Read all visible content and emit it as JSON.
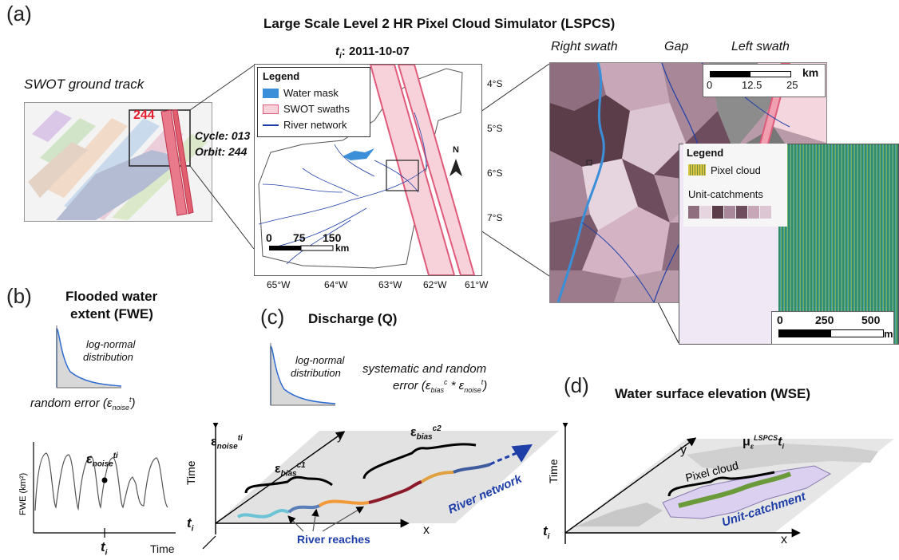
{
  "panel_a": {
    "letter": "(a)",
    "title": "Large Scale Level 2 HR Pixel Cloud Simulator (LSPCS)",
    "ground_track_label": "SWOT ground track",
    "track_number": "244",
    "cycle": "Cycle: 013",
    "orbit": "Orbit: 244",
    "map_time": "t",
    "map_time_sub": "i",
    "map_date": ": 2011-10-07",
    "legend_title": "Legend",
    "legend_items": [
      "Water mask",
      "SWOT swaths",
      "River network"
    ],
    "lat_ticks": [
      "4°S",
      "5°S",
      "6°S",
      "7°S"
    ],
    "lon_ticks": [
      "65°W",
      "64°W",
      "63°W",
      "62°W",
      "61°W"
    ],
    "scale1": {
      "labels": [
        "0",
        "75",
        "150"
      ],
      "unit": "km"
    },
    "north": "N",
    "right_swath": "Right swath",
    "gap": "Gap",
    "left_swath": "Left swath",
    "scale2": {
      "labels": [
        "0",
        "12.5",
        "25"
      ],
      "unit": "km"
    },
    "inset_legend_title": "Legend",
    "pixel_cloud": "Pixel cloud",
    "unit_catchments": "Unit-catchments",
    "scale3": {
      "labels": [
        "0",
        "250",
        "500"
      ],
      "unit": "m"
    },
    "colors": {
      "swath": "#f4c6cf",
      "swath_edge": "#e05a7a",
      "water": "#3a8fd8",
      "river": "#1f3fa8",
      "catch_dark": "#5b3d4a",
      "catch_mid": "#9c7c8c",
      "catch_light": "#dcc6d4",
      "pixel_green": "#2e8b6b"
    }
  },
  "panel_b": {
    "letter": "(b)",
    "title_line1": "Flooded water",
    "title_line2": "extent (FWE)",
    "dist_line1": "log-normal",
    "dist_line2": "distribution",
    "error": "random error (ε",
    "error_sub": "noise",
    "error_sup": "t",
    "error_end": ")",
    "eps": "ε",
    "eps_sub": "noise",
    "eps_sup": "ti",
    "ylabel": "FWE (km²)",
    "xlabel": "Time",
    "t": "t",
    "t_sub": "i"
  },
  "panel_c": {
    "letter": "(c)",
    "title": "Discharge (Q)",
    "dist_line1": "log-normal",
    "dist_line2": "distribution",
    "error_line1": "systematic and random",
    "error_line2": "error (ε",
    "bias_sub": "bias",
    "bias_sup": "c",
    "star": " * ε",
    "noise_sub": "noise",
    "noise_sup": "t",
    "end": ")",
    "axis_y": "y",
    "axis_time": "Time",
    "axis_x": "x",
    "t": "t",
    "t_sub": "i",
    "eps": "ε",
    "eps_noise_sub": "noise",
    "eps_noise_sup": "ti",
    "eps_bias_sub": "bias",
    "eps_bias_sup1": "c1",
    "eps_bias_sup2": "c2",
    "river_network": "River network",
    "river_reaches": "River reaches",
    "reach_colors": [
      "#6cc3d5",
      "#5b7fb8",
      "#f29a3a",
      "#8b1a2b",
      "#e0a040",
      "#3d5c9e"
    ]
  },
  "panel_d": {
    "letter": "(d)",
    "title": "Water surface elevation (WSE)",
    "mu": "μ",
    "mu_sub": "ε",
    "mu_sup": "LSPCS",
    "mu_t": "t",
    "mu_t_sub": "i",
    "axis_y": "y",
    "axis_time": "Time",
    "axis_x": "x",
    "t": "t",
    "t_sub": "i",
    "pixel_cloud": "Pixel cloud",
    "unit_catchment": "Unit-catchment"
  }
}
